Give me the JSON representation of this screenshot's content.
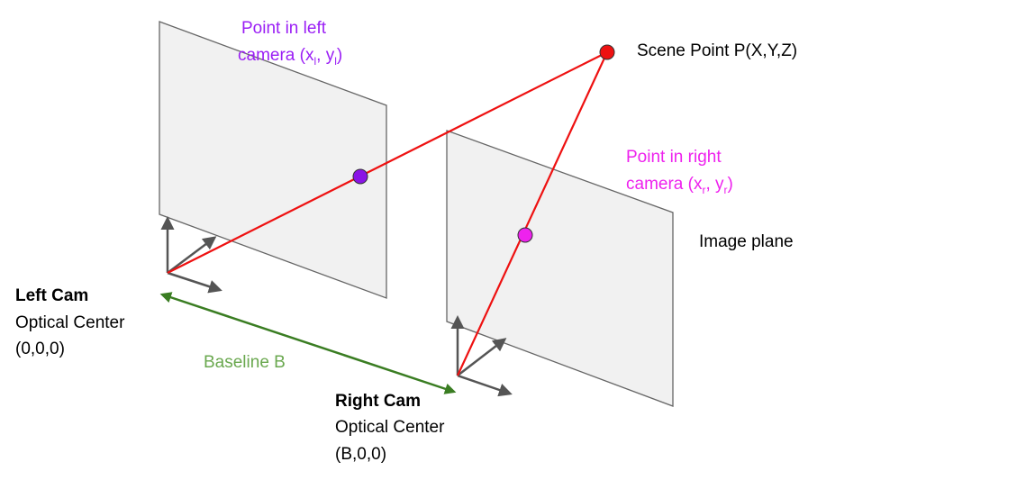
{
  "labels": {
    "scene_point": "Scene Point P(X,Y,Z)",
    "left_point_line1": "Point in left",
    "left_point_line2_prefix": "camera (x",
    "left_point_sub_x": "l",
    "left_point_mid": ", y",
    "left_point_sub_y": "l",
    "left_point_suffix": ")",
    "right_point_line1": "Point in right",
    "right_point_line2_prefix": "camera (x",
    "right_point_sub_x": "r",
    "right_point_mid": ", y",
    "right_point_sub_y": "r",
    "right_point_suffix": ")",
    "image_plane": "Image plane",
    "left_cam_title": "Left Cam",
    "left_cam_line2": "Optical Center",
    "left_cam_line3": "(0,0,0)",
    "right_cam_title": "Right Cam",
    "right_cam_line2": "Optical Center",
    "right_cam_line3": "(B,0,0)",
    "baseline": "Baseline B"
  },
  "colors": {
    "ray": "#ee1111",
    "scene_point_fill": "#ee1111",
    "left_point_fill": "#8a14e6",
    "left_point_text": "#9b1ff5",
    "right_point_fill": "#ee22ee",
    "right_point_text": "#ee22ee",
    "baseline": "#3a7d22",
    "baseline_text": "#6aa84f",
    "plane_fill": "#f1f1f1",
    "plane_stroke": "#666666",
    "axis": "#555555",
    "text": "#000000"
  }
}
